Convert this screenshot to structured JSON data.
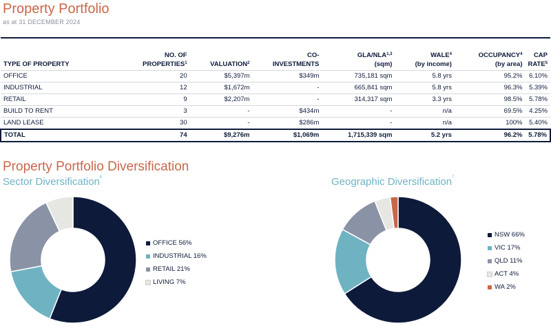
{
  "header": {
    "title": "Property Portfolio",
    "subtitle": "as at 31 DECEMBER 2024"
  },
  "table": {
    "headers": {
      "type": "TYPE OF PROPERTY",
      "num_line1": "NO. OF",
      "num_line2": "PROPERTIES",
      "num_sup": "1",
      "valuation": "VALUATION",
      "valuation_sup": "2",
      "coinv_line1": "CO-",
      "coinv_line2": "INVESTMENTS",
      "gla_line1": "GLA/NLA",
      "gla_sup": "1,3",
      "gla_line2": "(sqm)",
      "wale_line1": "WALE",
      "wale_sup": "4",
      "wale_line2": "(by income)",
      "occ_line1": "OCCUPANCY",
      "occ_sup": "4",
      "occ_line2": "(by area)",
      "cap_line1": "CAP",
      "cap_line2": "RATE",
      "cap_sup": "5"
    },
    "rows": [
      [
        "OFFICE",
        "20",
        "$5,397m",
        "$349m",
        "735,181 sqm",
        "5.8 yrs",
        "95.2%",
        "6.10%"
      ],
      [
        "INDUSTRIAL",
        "12",
        "$1,672m",
        "-",
        "665,841 sqm",
        "5.8 yrs",
        "96.3%",
        "5.39%"
      ],
      [
        "RETAIL",
        "9",
        "$2,207m",
        "-",
        "314,317 sqm",
        "3.3 yrs",
        "98.5%",
        "5.78%"
      ],
      [
        "BUILD TO RENT",
        "3",
        "-",
        "$434m",
        "-",
        "n/a",
        "69.5%",
        "4.25%"
      ],
      [
        "LAND LEASE",
        "30",
        "-",
        "$286m",
        "-",
        "n/a",
        "100%",
        "5.40%"
      ]
    ],
    "total": [
      "TOTAL",
      "74",
      "$9,276m",
      "$1,069m",
      "1,715,339 sqm",
      "5.2 yrs",
      "96.2%",
      "5.78%"
    ]
  },
  "diversification": {
    "title": "Property Portfolio Diversification",
    "sector": {
      "title": "Sector Diversification",
      "sup": "6",
      "legend": [
        "OFFICE 56%",
        "INDUSTRIAL 16%",
        "RETAIL 21%",
        "LIVING 7%"
      ]
    },
    "geo": {
      "title": "Geographic Diversification",
      "sup": "7",
      "legend": [
        "NSW 66%",
        "VIC 17%",
        "QLD 11%",
        "ACT 4%",
        "WA 2%"
      ]
    }
  },
  "chart_data": [
    {
      "type": "pie",
      "categories": [
        "OFFICE",
        "INDUSTRIAL",
        "RETAIL",
        "LIVING"
      ],
      "values": [
        56,
        16,
        21,
        7
      ],
      "colors": [
        "#0d1a3a",
        "#6fb3c2",
        "#8a93a6",
        "#e6e7e3"
      ]
    },
    {
      "type": "pie",
      "categories": [
        "NSW",
        "VIC",
        "QLD",
        "ACT",
        "WA"
      ],
      "values": [
        66,
        17,
        11,
        4,
        2
      ],
      "colors": [
        "#0d1a3a",
        "#6fb3c2",
        "#8a93a6",
        "#e6e7e3",
        "#c8674a"
      ]
    }
  ]
}
